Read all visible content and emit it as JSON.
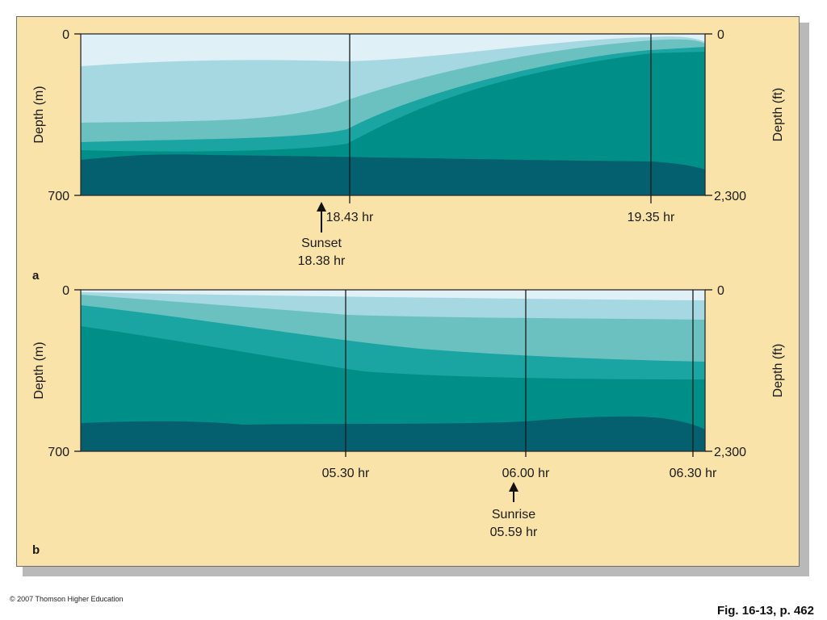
{
  "panels": [
    {
      "letter": "a",
      "left_top": "0",
      "left_bottom": "700",
      "left_label": "Depth (m)",
      "right_top": "0",
      "right_bottom": "2,300",
      "right_label": "Depth (ft)",
      "times": [
        "18.43 hr",
        "19.35 hr"
      ],
      "event": {
        "name": "Sunset",
        "time": "18.38 hr"
      }
    },
    {
      "letter": "b",
      "left_top": "0",
      "left_bottom": "700",
      "left_label": "Depth (m)",
      "right_top": "0",
      "right_bottom": "2,300",
      "right_label": "Depth (ft)",
      "times": [
        "05.30 hr",
        "06.00 hr",
        "06.30 hr"
      ],
      "event": {
        "name": "Sunrise",
        "time": "05.59 hr"
      }
    }
  ],
  "layer_colors": [
    "#dff0f7",
    "#a5d8e1",
    "#6bc0c0",
    "#1aa5a2",
    "#008f88",
    "#04606f"
  ],
  "copyright": "© 2007 Thomson Higher Education",
  "figure_ref": "Fig. 16-13, p. 462"
}
